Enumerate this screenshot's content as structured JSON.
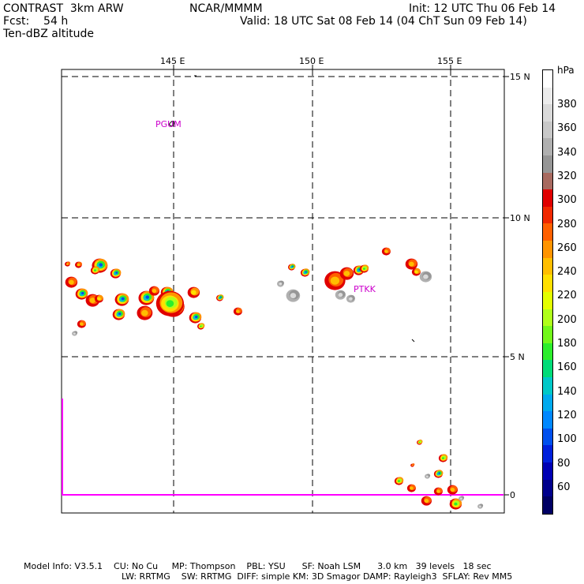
{
  "header": {
    "model": "CONTRAST  3km ARW",
    "forecast": "Fcst:    54 h",
    "field": "Ten-dBZ altitude",
    "org": "NCAR/MMMM",
    "init": "Init: 12 UTC Thu 06 Feb 14",
    "valid": "Valid: 18 UTC Sat 08 Feb 14 (04 ChT Sun 09 Feb 14)"
  },
  "map": {
    "lon_labels": [
      "145 E",
      "150 E",
      "155 E"
    ],
    "lat_labels": [
      "15 N",
      "10 N",
      "5 N",
      "0"
    ],
    "stations": [
      "PGUM",
      "PTKK"
    ],
    "colors": {
      "station": "#cc00cc",
      "boundary": "#ff00ff",
      "grid": "#000000"
    }
  },
  "colorbar": {
    "unit": "hPa",
    "labels": [
      "380",
      "360",
      "340",
      "320",
      "300",
      "280",
      "260",
      "240",
      "220",
      "200",
      "180",
      "160",
      "140",
      "120",
      "100",
      "80",
      "60"
    ],
    "colors": [
      "#ffffff",
      "#ececec",
      "#dadada",
      "#c8c8c8",
      "#b0b0b0",
      "#969696",
      "#a86a60",
      "#e00000",
      "#f02800",
      "#ff6000",
      "#ff9400",
      "#ffbe00",
      "#ffe000",
      "#e4ff00",
      "#b0ff1a",
      "#72f81a",
      "#2cee2c",
      "#00dc78",
      "#00c8c8",
      "#00aaee",
      "#0088ff",
      "#0050ee",
      "#0020dc",
      "#0000b4",
      "#00008c",
      "#000064"
    ]
  },
  "footer": {
    "line1": "Model Info: V3.5.1    CU: No Cu     MP: Thompson    PBL: YSU      SF: Noah LSM      3.0 km   39 levels   18 sec",
    "line2": "LW: RRTMG    SW: RRTMG  DIFF: simple KM: 3D Smagor DAMP: Rayleigh3  SFLAY: Rev MM5"
  }
}
